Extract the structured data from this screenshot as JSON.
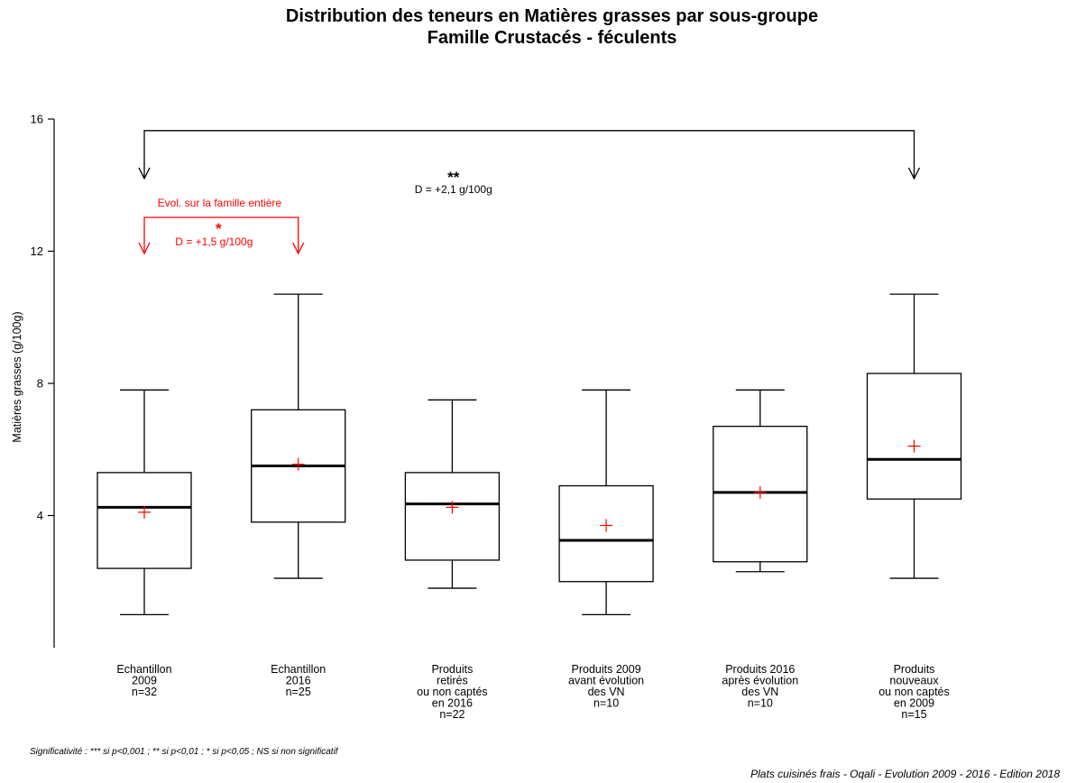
{
  "chart_data": {
    "type": "boxplot",
    "title": [
      "Distribution des teneurs en Matières grasses par sous-groupe",
      "Famille Crustacés - féculents"
    ],
    "ylabel": "Matières grasses (g/100g)",
    "ylim": [
      0,
      16.6
    ],
    "yticks": [
      "4",
      "8",
      "12",
      "16"
    ],
    "ytick_values": [
      4,
      8,
      12,
      16
    ],
    "categories": [
      {
        "label_lines": [
          "Echantillon",
          "2009",
          "n=32"
        ],
        "whisker_low": 1.0,
        "q1": 2.4,
        "median": 4.25,
        "q3": 5.3,
        "whisker_high": 7.8,
        "mean": 4.1
      },
      {
        "label_lines": [
          "Echantillon",
          "2016",
          "n=25"
        ],
        "whisker_low": 2.1,
        "q1": 3.8,
        "median": 5.5,
        "q3": 7.2,
        "whisker_high": 10.7,
        "mean": 5.55
      },
      {
        "label_lines": [
          "Produits",
          "retirés",
          "ou non captés",
          "en 2016",
          "n=22"
        ],
        "whisker_low": 1.8,
        "q1": 2.65,
        "median": 4.35,
        "q3": 5.3,
        "whisker_high": 7.5,
        "mean": 4.25
      },
      {
        "label_lines": [
          "Produits 2009",
          "avant évolution",
          "des VN",
          "n=10"
        ],
        "whisker_low": 1.0,
        "q1": 2.0,
        "median": 3.25,
        "q3": 4.9,
        "whisker_high": 7.8,
        "mean": 3.7
      },
      {
        "label_lines": [
          "Produits 2016",
          "après évolution",
          "des VN",
          "n=10"
        ],
        "whisker_low": 2.3,
        "q1": 2.6,
        "median": 4.7,
        "q3": 6.7,
        "whisker_high": 7.8,
        "mean": 4.7
      },
      {
        "label_lines": [
          "Produits",
          "nouveaux",
          "ou non captés",
          "en 2009",
          "n=15"
        ],
        "whisker_low": 2.1,
        "q1": 4.5,
        "median": 5.7,
        "q3": 8.3,
        "whisker_high": 10.7,
        "mean": 6.1
      }
    ],
    "annotations": {
      "black": {
        "from_category": 0,
        "to_category": 5,
        "bracket_y": 15.65,
        "arrow_to_y": 14.2,
        "stars": "**",
        "text": "D = +2,1 g/100g"
      },
      "red": {
        "from_category": 0,
        "to_category": 1,
        "bracket_y": 10.0,
        "arrow_to_y": 11.9,
        "title": "Evol. sur la famille entière",
        "stars": "*",
        "text": "D = +1,5 g/100g"
      }
    },
    "colors": {
      "box": "#000000",
      "mean_marker": "#ff0000",
      "red_annotation": "#ff0000"
    }
  },
  "footnote": "Significativité : *** si p<0,001 ; ** si p<0,01 ; * si p<0,05 ; NS si non significatif",
  "source": "Plats cuisinés frais - Oqali - Evolution 2009 - 2016 - Edition 2018"
}
